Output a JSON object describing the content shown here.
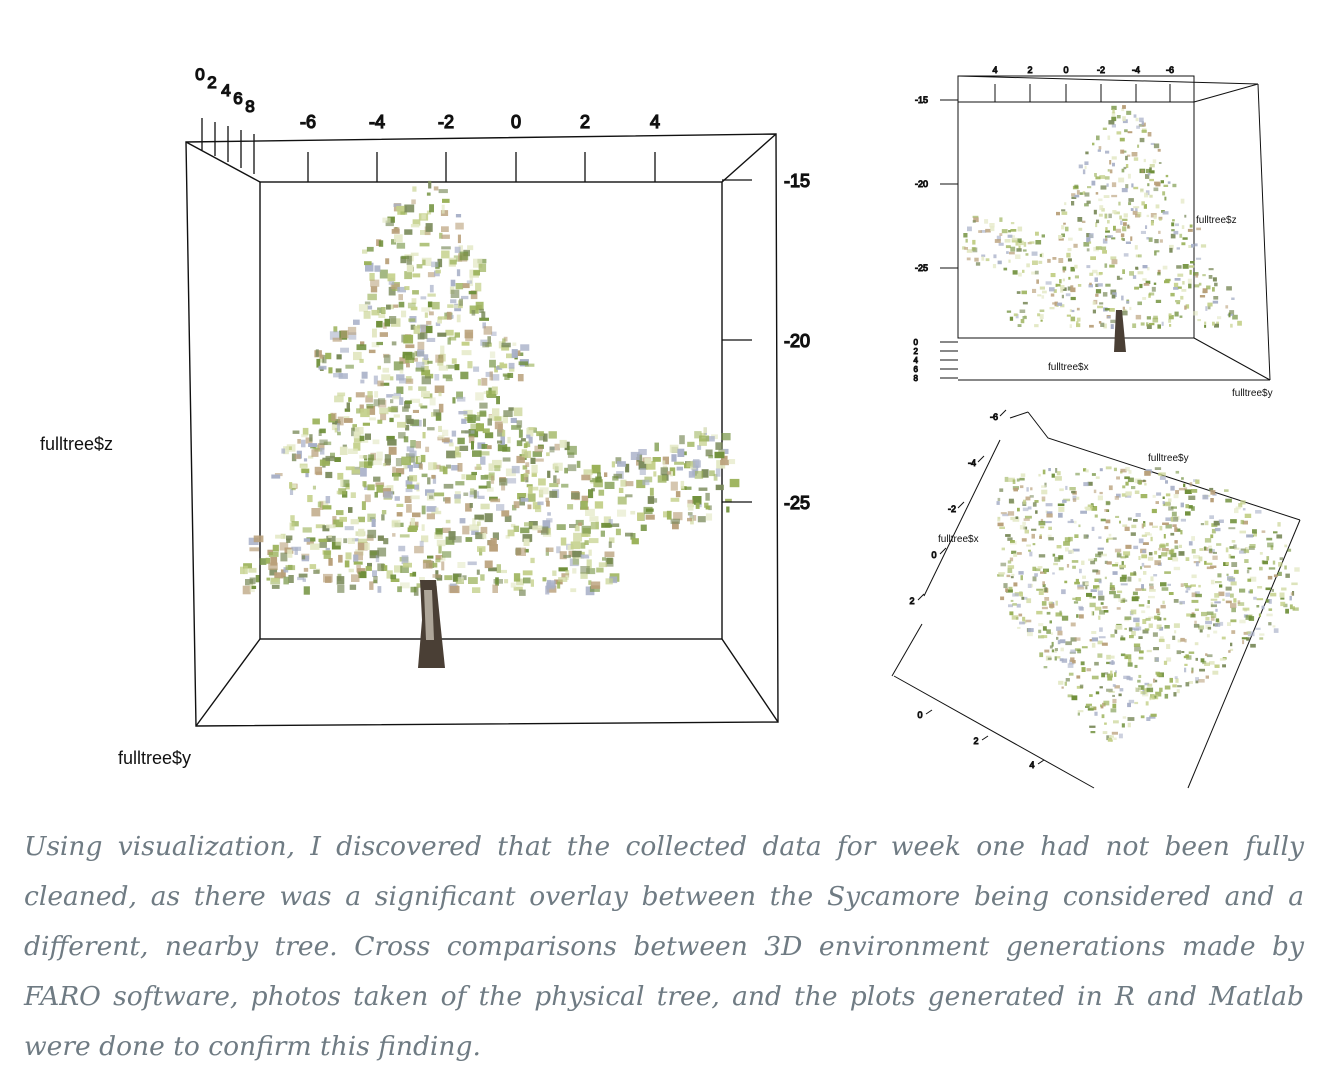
{
  "chart_data": [
    {
      "type": "scatter",
      "projection": "3d",
      "view": "front (x/y vs z)",
      "zlabel": "fulltree$z",
      "ylabel": "fulltree$y",
      "depth_ticks": [
        "0",
        "2",
        "4",
        "6",
        "8"
      ],
      "y_ticks": [
        "-6",
        "-4",
        "-2",
        "0",
        "2",
        "4"
      ],
      "z_ticks": [
        "-15",
        "-20",
        "-25"
      ],
      "marker_colors": [
        "#6f8f3a",
        "#9bb25a",
        "#c4d08a",
        "#e3e8c4",
        "#7a8a5a",
        "#b9a07a",
        "#a8b0c8"
      ]
    },
    {
      "type": "scatter",
      "projection": "3d",
      "view": "rotated side view",
      "xlabel": "fulltree$x",
      "ylabel": "fulltree$y",
      "zlabel": "fulltree$z",
      "top_ticks": [
        "4",
        "2",
        "0",
        "-2",
        "-4",
        "-6"
      ],
      "z_ticks": [
        "-15",
        "-20",
        "-25"
      ],
      "depth_ticks": [
        "0",
        "2",
        "4",
        "6",
        "8"
      ]
    },
    {
      "type": "scatter",
      "projection": "3d",
      "view": "top-down rotated view",
      "xlabel": "fulltree$x",
      "ylabel": "fulltree$y",
      "x_ticks": [
        "-6",
        "-4",
        "-2",
        "0",
        "2"
      ],
      "y_ticks": [
        "0",
        "2",
        "4"
      ]
    }
  ],
  "caption": "Using visualization, I discovered that the collected data for week one had not been fully cleaned, as there was a significant overlay between the Sycamore being considered and a different, nearby tree. Cross comparisons between 3D environment generations made by FARO software, photos taken of the physical tree, and the plots generated in R and Matlab were done to confirm this finding."
}
